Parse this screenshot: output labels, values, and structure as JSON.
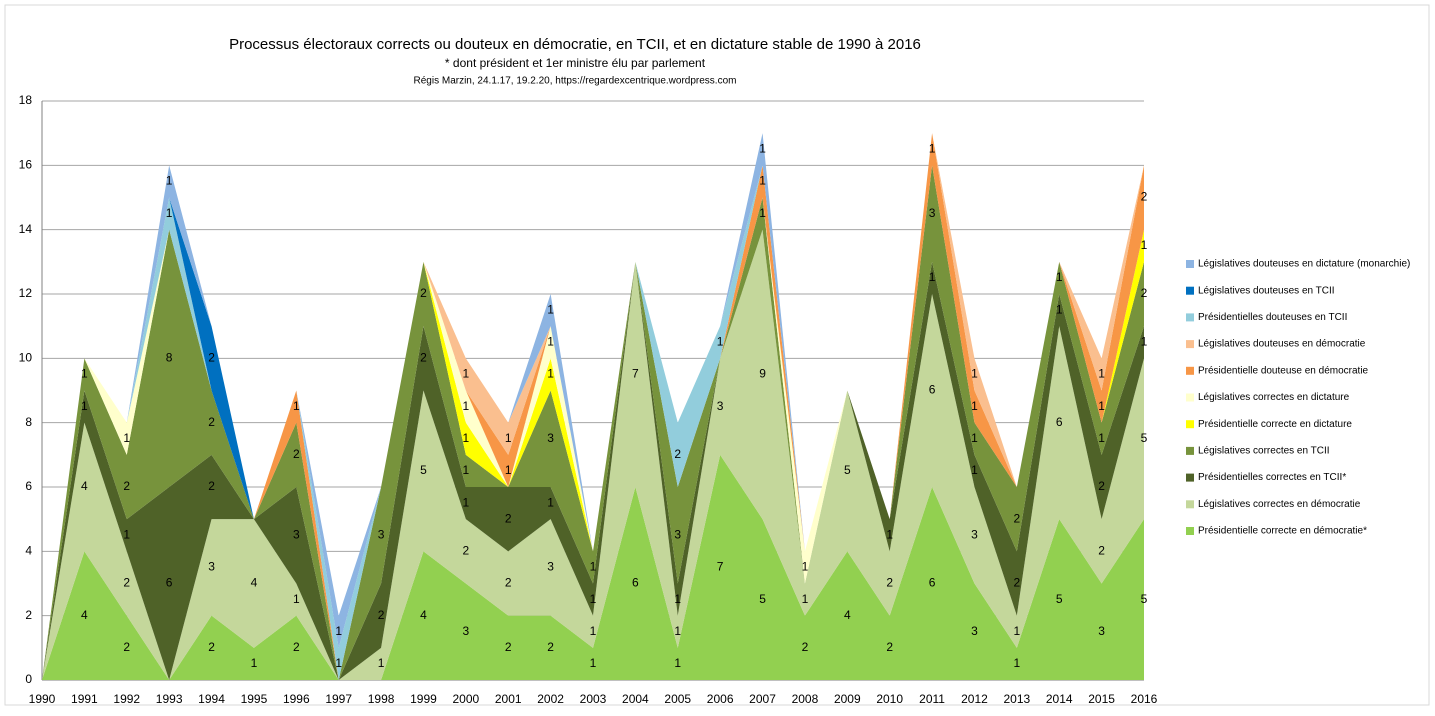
{
  "chart_data": {
    "type": "stacked_area",
    "title": "Processus électoraux corrects ou douteux en démocratie, en TCII, et en dictature stable de 1990 à 2016",
    "subtitle": "* dont président et 1er ministre élu par parlement",
    "source": "Régis Marzin, 24.1.17, 19.2.20, https://regardexcentrique.wordpress.com",
    "categories": [
      "1990",
      "1991",
      "1992",
      "1993",
      "1994",
      "1995",
      "1996",
      "1997",
      "1998",
      "1999",
      "2000",
      "2001",
      "2002",
      "2003",
      "2004",
      "2005",
      "2006",
      "2007",
      "2008",
      "2009",
      "2010",
      "2011",
      "2012",
      "2013",
      "2014",
      "2015",
      "2016"
    ],
    "ylim": [
      0,
      18
    ],
    "yticks": [
      0,
      2,
      4,
      6,
      8,
      10,
      12,
      14,
      16,
      18
    ],
    "grid": true,
    "series": [
      {
        "name": "Présidentielle correcte en démocratie*",
        "color": "#92d050",
        "values": [
          0,
          4,
          2,
          0,
          2,
          1,
          2,
          0,
          0,
          4,
          3,
          2,
          2,
          1,
          6,
          1,
          7,
          5,
          2,
          4,
          2,
          6,
          3,
          1,
          5,
          3,
          5
        ]
      },
      {
        "name": "Législatives correctes en démocratie",
        "color": "#c4d79b",
        "values": [
          0,
          4,
          2,
          0,
          3,
          4,
          1,
          0,
          1,
          5,
          2,
          2,
          3,
          1,
          7,
          1,
          3,
          9,
          1,
          5,
          2,
          6,
          3,
          1,
          6,
          2,
          5
        ]
      },
      {
        "name": "Présidentielles correctes en TCII*",
        "color": "#4f6228",
        "values": [
          0,
          1,
          1,
          6,
          2,
          0,
          3,
          0,
          2,
          2,
          1,
          2,
          1,
          1,
          0,
          1,
          0,
          0,
          0,
          0,
          1,
          1,
          1,
          2,
          1,
          2,
          1
        ]
      },
      {
        "name": "Législatives correctes en TCII",
        "color": "#77933c",
        "values": [
          0,
          1,
          2,
          8,
          2,
          0,
          2,
          0,
          3,
          2,
          1,
          0,
          3,
          1,
          0,
          3,
          0,
          1,
          0,
          0,
          0,
          3,
          1,
          2,
          1,
          1,
          2
        ]
      },
      {
        "name": "Présidentielle correcte en dictature",
        "color": "#ffff00",
        "values": [
          0,
          0,
          0,
          0,
          0,
          0,
          0,
          0,
          0,
          0,
          1,
          0,
          1,
          0,
          0,
          0,
          0,
          0,
          0,
          0,
          0,
          0,
          0,
          0,
          0,
          0,
          1
        ]
      },
      {
        "name": "Législatives correctes en dictature",
        "color": "#ffffcc",
        "values": [
          0,
          0,
          1,
          0,
          0,
          0,
          0,
          0,
          0,
          0,
          1,
          0,
          1,
          0,
          0,
          0,
          0,
          0,
          1,
          0,
          0,
          0,
          0,
          0,
          0,
          0,
          0
        ]
      },
      {
        "name": "Présidentielle douteuse en démocratie",
        "color": "#f79646",
        "values": [
          0,
          0,
          0,
          0,
          0,
          0,
          1,
          0,
          0,
          0,
          0,
          1,
          0,
          0,
          0,
          0,
          0,
          1,
          0,
          0,
          0,
          1,
          1,
          0,
          0,
          1,
          2
        ]
      },
      {
        "name": "Législatives douteuses en démocratie",
        "color": "#fabf8f",
        "values": [
          0,
          0,
          0,
          0,
          0,
          0,
          0,
          0,
          0,
          0,
          1,
          1,
          0,
          0,
          0,
          0,
          0,
          0,
          0,
          0,
          0,
          0,
          1,
          0,
          0,
          1,
          0
        ]
      },
      {
        "name": "Présidentielles douteuses en TCII",
        "color": "#92cddc",
        "values": [
          0,
          0,
          0,
          1,
          0,
          0,
          0,
          1,
          0,
          0,
          0,
          0,
          0,
          0,
          0,
          2,
          1,
          0,
          0,
          0,
          0,
          0,
          0,
          0,
          0,
          0,
          0
        ]
      },
      {
        "name": "Législatives douteuses en TCII",
        "color": "#0070c0",
        "values": [
          0,
          0,
          0,
          0,
          2,
          0,
          0,
          0,
          0,
          0,
          0,
          0,
          0,
          0,
          0,
          0,
          0,
          0,
          0,
          0,
          0,
          0,
          0,
          0,
          0,
          0,
          0
        ]
      },
      {
        "name": "Législatives douteuses en dictature (monarchie)",
        "color": "#8db4e2",
        "values": [
          0,
          0,
          0,
          1,
          0,
          0,
          0,
          1,
          0,
          0,
          0,
          0,
          1,
          0,
          0,
          0,
          0,
          1,
          0,
          0,
          0,
          0,
          0,
          0,
          0,
          0,
          0
        ]
      }
    ]
  }
}
